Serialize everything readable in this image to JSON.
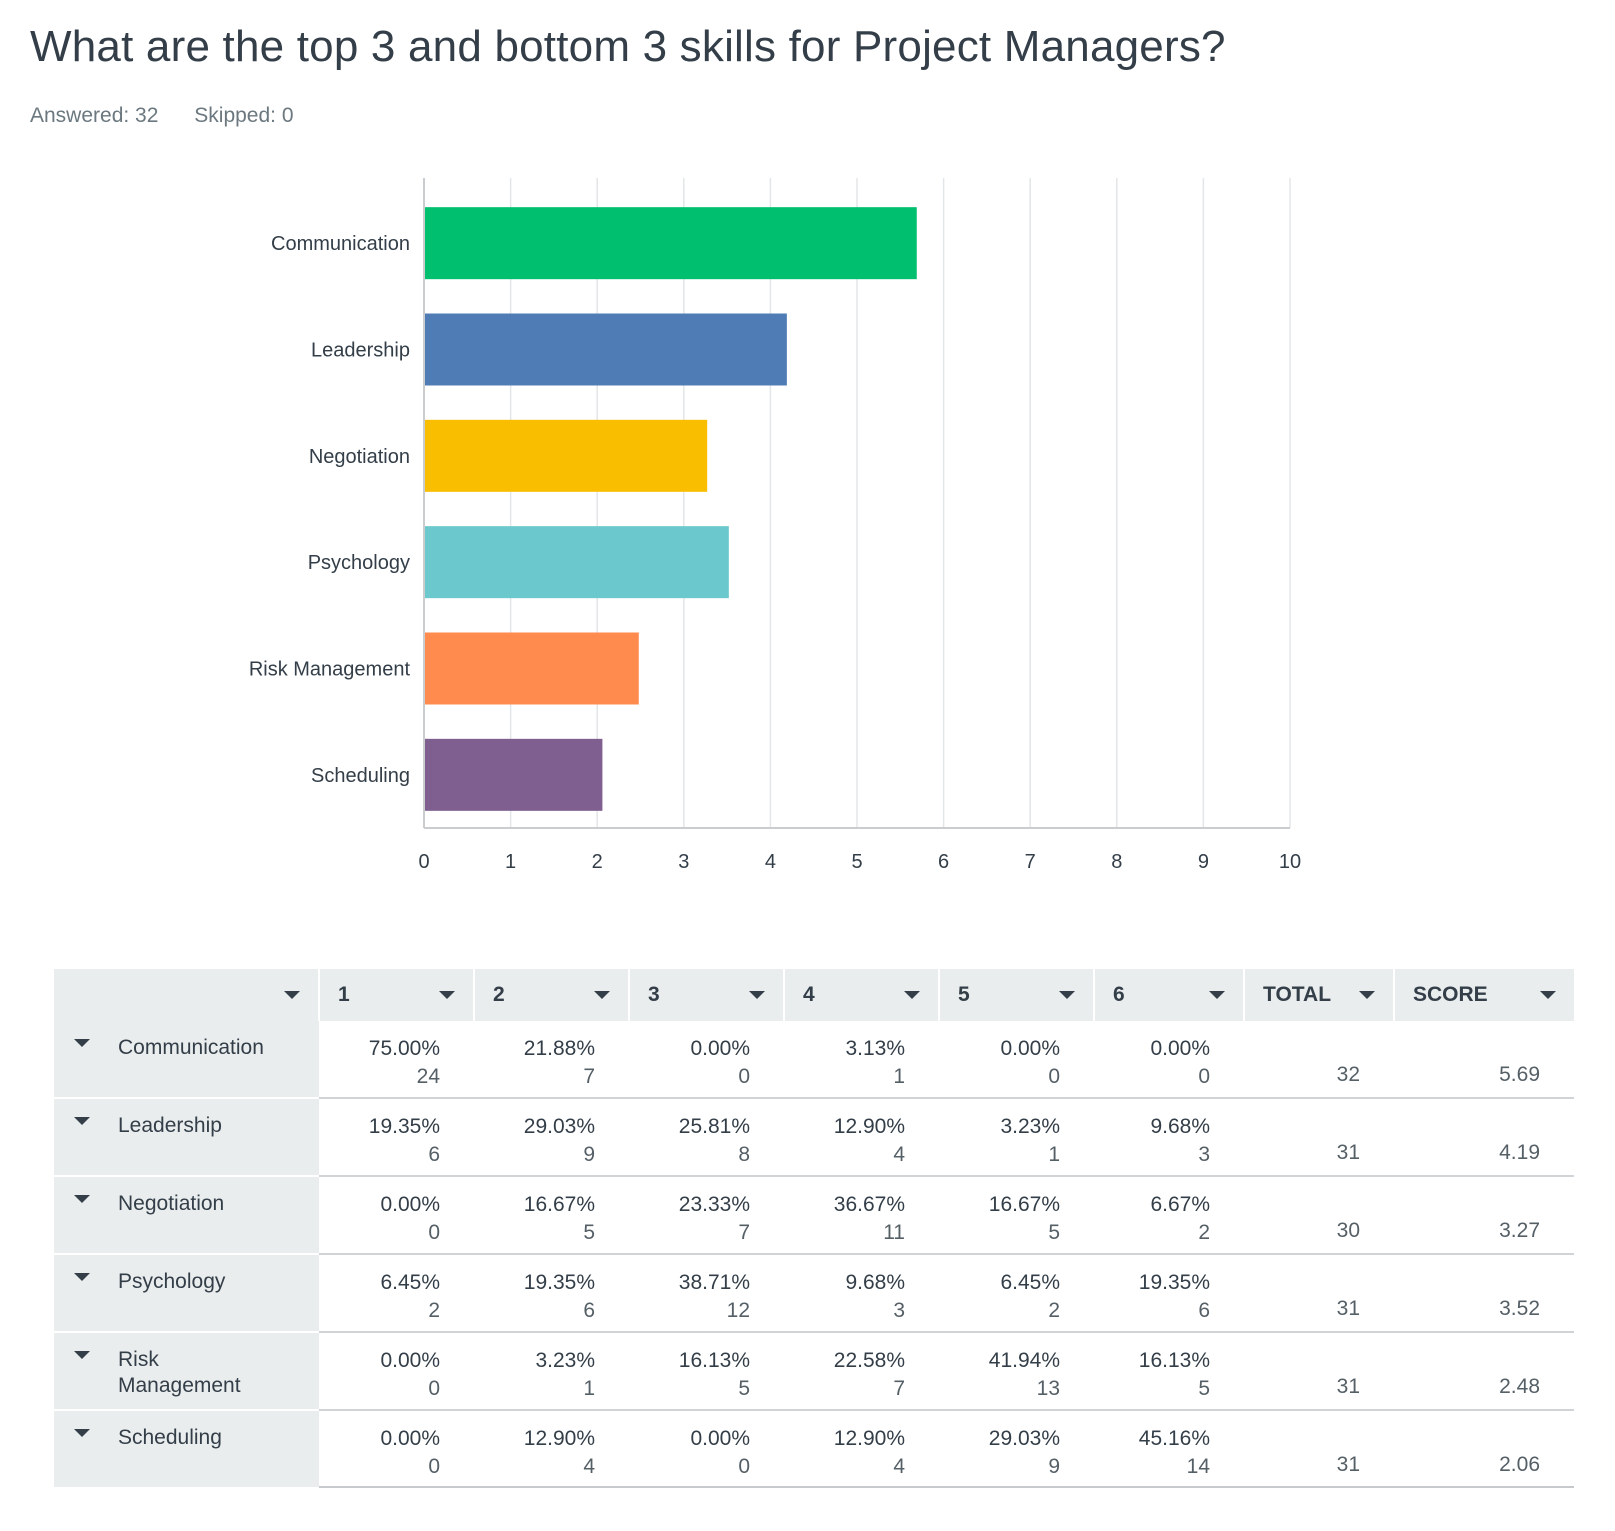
{
  "question": {
    "title": "What are the top 3 and bottom 3 skills for Project Managers?",
    "answered": "Answered: 32",
    "skipped": "Skipped: 0"
  },
  "chart_data": {
    "type": "bar",
    "orientation": "horizontal",
    "categories": [
      "Communication",
      "Leadership",
      "Negotiation",
      "Psychology",
      "Risk Management",
      "Scheduling"
    ],
    "values": [
      5.69,
      4.19,
      3.27,
      3.52,
      2.48,
      2.06
    ],
    "colors": [
      "#00bf6f",
      "#507cb6",
      "#f9be00",
      "#6bc8cd",
      "#ff8b4f",
      "#7f5f90"
    ],
    "xlim": [
      0,
      10
    ],
    "xticks": [
      "0",
      "1",
      "2",
      "3",
      "4",
      "5",
      "6",
      "7",
      "8",
      "9",
      "10"
    ],
    "grid": true
  },
  "table": {
    "columns": [
      "",
      "1",
      "2",
      "3",
      "4",
      "5",
      "6",
      "TOTAL",
      "SCORE"
    ],
    "rows": [
      {
        "label": "Communication",
        "cells": [
          [
            "75.00%",
            "24"
          ],
          [
            "21.88%",
            "7"
          ],
          [
            "0.00%",
            "0"
          ],
          [
            "3.13%",
            "1"
          ],
          [
            "0.00%",
            "0"
          ],
          [
            "0.00%",
            "0"
          ]
        ],
        "total": "32",
        "score": "5.69"
      },
      {
        "label": "Leadership",
        "cells": [
          [
            "19.35%",
            "6"
          ],
          [
            "29.03%",
            "9"
          ],
          [
            "25.81%",
            "8"
          ],
          [
            "12.90%",
            "4"
          ],
          [
            "3.23%",
            "1"
          ],
          [
            "9.68%",
            "3"
          ]
        ],
        "total": "31",
        "score": "4.19"
      },
      {
        "label": "Negotiation",
        "cells": [
          [
            "0.00%",
            "0"
          ],
          [
            "16.67%",
            "5"
          ],
          [
            "23.33%",
            "7"
          ],
          [
            "36.67%",
            "11"
          ],
          [
            "16.67%",
            "5"
          ],
          [
            "6.67%",
            "2"
          ]
        ],
        "total": "30",
        "score": "3.27"
      },
      {
        "label": "Psychology",
        "cells": [
          [
            "6.45%",
            "2"
          ],
          [
            "19.35%",
            "6"
          ],
          [
            "38.71%",
            "12"
          ],
          [
            "9.68%",
            "3"
          ],
          [
            "6.45%",
            "2"
          ],
          [
            "19.35%",
            "6"
          ]
        ],
        "total": "31",
        "score": "3.52"
      },
      {
        "label": "Risk Management",
        "cells": [
          [
            "0.00%",
            "0"
          ],
          [
            "3.23%",
            "1"
          ],
          [
            "16.13%",
            "5"
          ],
          [
            "22.58%",
            "7"
          ],
          [
            "41.94%",
            "13"
          ],
          [
            "16.13%",
            "5"
          ]
        ],
        "total": "31",
        "score": "2.48"
      },
      {
        "label": "Scheduling",
        "cells": [
          [
            "0.00%",
            "0"
          ],
          [
            "12.90%",
            "4"
          ],
          [
            "0.00%",
            "0"
          ],
          [
            "12.90%",
            "4"
          ],
          [
            "29.03%",
            "9"
          ],
          [
            "45.16%",
            "14"
          ]
        ],
        "total": "31",
        "score": "2.06"
      }
    ]
  }
}
